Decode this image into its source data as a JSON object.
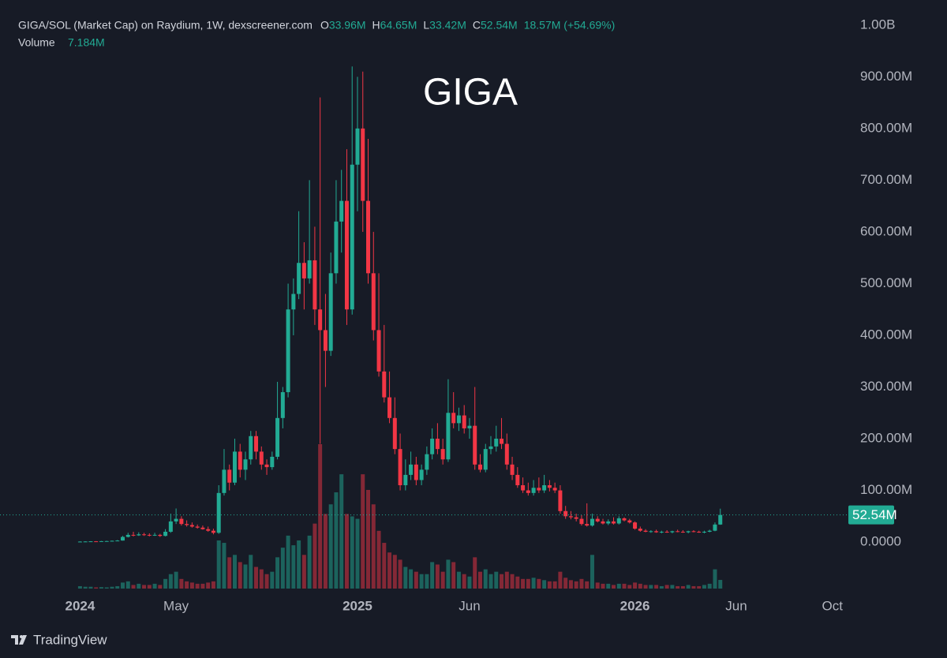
{
  "chart_data": {
    "type": "candlestick",
    "title": "GIGA",
    "header": "GIGA/SOL (Market Cap) on Raydium, 1W, dexscreener.com",
    "ohlc_names": {
      "open": "O",
      "high": "H",
      "low": "L",
      "close": "C"
    },
    "ohlc_labels": {
      "open": "33.96M",
      "high": "64.65M",
      "low": "33.42M",
      "close": "52.54M",
      "change": "18.57M (+54.69%)"
    },
    "volume_name": "Volume",
    "volume_label": "7.184M",
    "footer": "TradingView",
    "up_color": "#22ab94",
    "down_color": "#f23645",
    "open": [
      1,
      1,
      1.2,
      1.5,
      1.4,
      1.8,
      2,
      2.5,
      3,
      10,
      14,
      13,
      15,
      14,
      13,
      14,
      12,
      20,
      40,
      45,
      35,
      33,
      30,
      28,
      25,
      22,
      18,
      95,
      140,
      115,
      175,
      140,
      160,
      205,
      175,
      150,
      145,
      165,
      240,
      290,
      450,
      480,
      540,
      510,
      545,
      450,
      410,
      370,
      520,
      620,
      660,
      450,
      730,
      800,
      660,
      520,
      410,
      330,
      280,
      240,
      180,
      110,
      130,
      150,
      120,
      140,
      170,
      200,
      180,
      160,
      250,
      230,
      245,
      220,
      225,
      150,
      140,
      180,
      185,
      200,
      190,
      150,
      130,
      110,
      100,
      95,
      105,
      100,
      110,
      105,
      100,
      60,
      50,
      48,
      45,
      35,
      32,
      45,
      40,
      36,
      40,
      36,
      46,
      42,
      38,
      26,
      22,
      20,
      21,
      19,
      20,
      19,
      21,
      20,
      19,
      21,
      20,
      19,
      20,
      22,
      33.96
    ],
    "high": [
      1.5,
      1.6,
      1.8,
      1.9,
      2.2,
      2.5,
      3,
      4,
      12,
      18,
      20,
      19,
      18,
      17,
      18,
      16,
      25,
      55,
      65,
      50,
      42,
      38,
      34,
      32,
      30,
      26,
      110,
      180,
      150,
      200,
      190,
      175,
      215,
      215,
      185,
      160,
      175,
      310,
      300,
      500,
      510,
      640,
      580,
      700,
      610,
      860,
      480,
      560,
      700,
      720,
      760,
      920,
      900,
      910,
      780,
      600,
      520,
      420,
      330,
      280,
      210,
      160,
      175,
      165,
      150,
      185,
      220,
      230,
      200,
      315,
      290,
      260,
      265,
      240,
      300,
      170,
      190,
      205,
      225,
      240,
      210,
      165,
      145,
      125,
      115,
      120,
      125,
      130,
      120,
      115,
      110,
      70,
      60,
      55,
      52,
      75,
      55,
      50,
      45,
      44,
      48,
      50,
      48,
      45,
      40,
      30,
      25,
      23,
      24,
      22,
      23,
      22,
      24,
      23,
      22,
      23,
      22,
      22,
      24,
      38,
      64.65
    ],
    "low": [
      0.8,
      0.9,
      1,
      1.2,
      1.3,
      1.6,
      1.8,
      2.2,
      2.8,
      9,
      11,
      12,
      12,
      11,
      12,
      10,
      11,
      18,
      35,
      32,
      30,
      28,
      26,
      24,
      20,
      15,
      16,
      90,
      100,
      110,
      125,
      120,
      150,
      160,
      140,
      130,
      140,
      160,
      220,
      280,
      400,
      470,
      450,
      500,
      420,
      190,
      300,
      360,
      500,
      560,
      420,
      440,
      640,
      600,
      500,
      390,
      320,
      270,
      230,
      170,
      100,
      100,
      120,
      110,
      110,
      130,
      160,
      170,
      150,
      155,
      220,
      215,
      210,
      200,
      140,
      135,
      135,
      170,
      175,
      180,
      140,
      120,
      105,
      95,
      90,
      90,
      95,
      95,
      98,
      95,
      55,
      45,
      44,
      40,
      32,
      30,
      30,
      38,
      34,
      33,
      34,
      34,
      40,
      36,
      24,
      20,
      19,
      18,
      18,
      17,
      18,
      17,
      19,
      18,
      17,
      19,
      18,
      17,
      19,
      21,
      33.42
    ],
    "close": [
      1,
      1.2,
      1.5,
      1.4,
      1.8,
      2,
      2.5,
      3,
      10,
      14,
      13,
      15,
      14,
      13,
      14,
      12,
      20,
      40,
      45,
      35,
      33,
      30,
      28,
      25,
      22,
      18,
      95,
      140,
      115,
      175,
      140,
      160,
      205,
      175,
      150,
      145,
      165,
      240,
      290,
      450,
      480,
      540,
      510,
      545,
      450,
      410,
      370,
      520,
      620,
      660,
      450,
      730,
      800,
      660,
      520,
      410,
      330,
      280,
      240,
      180,
      110,
      130,
      150,
      120,
      140,
      170,
      200,
      180,
      160,
      250,
      230,
      245,
      220,
      225,
      150,
      140,
      180,
      185,
      200,
      190,
      150,
      130,
      110,
      100,
      95,
      105,
      100,
      110,
      105,
      100,
      60,
      50,
      48,
      45,
      35,
      32,
      45,
      40,
      36,
      40,
      36,
      46,
      42,
      38,
      26,
      22,
      20,
      21,
      19,
      20,
      19,
      21,
      20,
      19,
      21,
      20,
      19,
      20,
      22,
      34,
      52.54
    ],
    "volume": [
      2,
      1.5,
      1.5,
      1,
      1.2,
      1,
      1.5,
      2,
      5,
      6,
      3,
      4,
      3,
      3,
      4,
      3,
      8,
      12,
      14,
      8,
      6,
      5,
      4,
      4,
      5,
      6,
      40,
      38,
      26,
      28,
      22,
      20,
      28,
      18,
      16,
      12,
      14,
      26,
      34,
      44,
      36,
      40,
      28,
      44,
      54,
      120,
      62,
      70,
      80,
      95,
      62,
      60,
      58,
      95,
      82,
      70,
      48,
      38,
      30,
      28,
      24,
      18,
      16,
      14,
      12,
      12,
      22,
      20,
      14,
      24,
      22,
      14,
      12,
      10,
      26,
      14,
      16,
      12,
      14,
      12,
      14,
      12,
      10,
      8,
      8,
      9,
      8,
      7,
      6,
      6,
      14,
      9,
      7,
      6,
      8,
      6,
      28,
      5,
      4,
      4,
      3,
      4,
      4,
      3,
      5,
      4,
      3,
      3,
      3,
      2,
      3,
      3,
      2,
      2,
      3,
      2,
      2,
      3,
      4,
      16,
      7.184
    ],
    "xlim": [
      -15,
      144
    ],
    "xticks": [
      {
        "value": 0,
        "label": "2024"
      },
      {
        "value": 18,
        "label": "May"
      },
      {
        "value": 52,
        "label": "2025"
      },
      {
        "value": 73,
        "label": "Jun"
      },
      {
        "value": 104,
        "label": "2026"
      },
      {
        "value": 123,
        "label": "Jun"
      },
      {
        "value": 141,
        "label": "Oct"
      }
    ],
    "ylim": [
      -96,
      1018
    ],
    "yticks": [
      {
        "value": 0,
        "label": "0.0000"
      },
      {
        "value": 100,
        "label": "100.00M"
      },
      {
        "value": 200,
        "label": "200.00M"
      },
      {
        "value": 300,
        "label": "300.00M"
      },
      {
        "value": 400,
        "label": "400.00M"
      },
      {
        "value": 500,
        "label": "500.00M"
      },
      {
        "value": 600,
        "label": "600.00M"
      },
      {
        "value": 700,
        "label": "700.00M"
      },
      {
        "value": 800,
        "label": "800.00M"
      },
      {
        "value": 900,
        "label": "900.00M"
      },
      {
        "value": 1000,
        "label": "1.00B"
      }
    ]
  }
}
